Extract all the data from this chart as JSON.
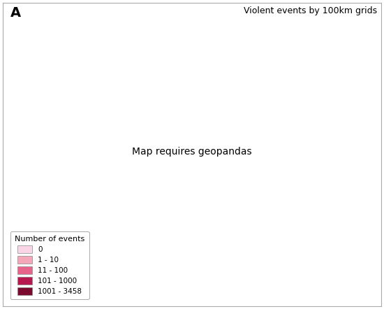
{
  "title": "Violent events by 100km grids",
  "panel_label": "A",
  "legend_title": "Number of events",
  "legend_labels": [
    "0",
    "1 - 10",
    "11 - 100",
    "101 - 1000",
    "1001 - 3458"
  ],
  "legend_colors": [
    "#f9d5e5",
    "#f4a7b9",
    "#e8638a",
    "#b5174e",
    "#7a0a2e"
  ],
  "background_color": "#ffffff",
  "map_background": "#ffffff",
  "border_color": "#d0d0d0",
  "country_border_color": "#555555",
  "grid_border_color": "#cccccc",
  "figsize": [
    5.5,
    4.42
  ],
  "dpi": 100
}
